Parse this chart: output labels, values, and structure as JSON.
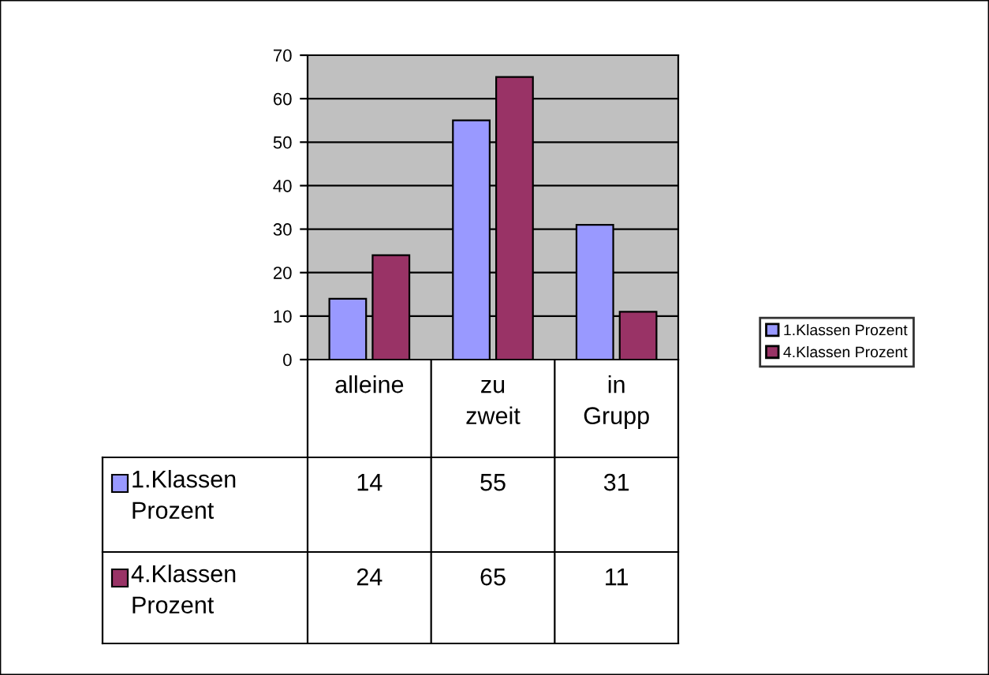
{
  "chart_data": {
    "type": "bar",
    "categories": [
      "alleine",
      "zu zweit",
      "in Grupp"
    ],
    "series": [
      {
        "name": "1.Klassen Prozent",
        "color": "#9999ff",
        "values": [
          14,
          55,
          31
        ]
      },
      {
        "name": "4.Klassen Prozent",
        "color": "#993366",
        "values": [
          24,
          65,
          11
        ]
      }
    ],
    "ylim": [
      0,
      70
    ],
    "yticks": [
      0,
      10,
      20,
      30,
      40,
      50,
      60,
      70
    ],
    "grid": "y",
    "legend": "right",
    "data_labels": true
  }
}
